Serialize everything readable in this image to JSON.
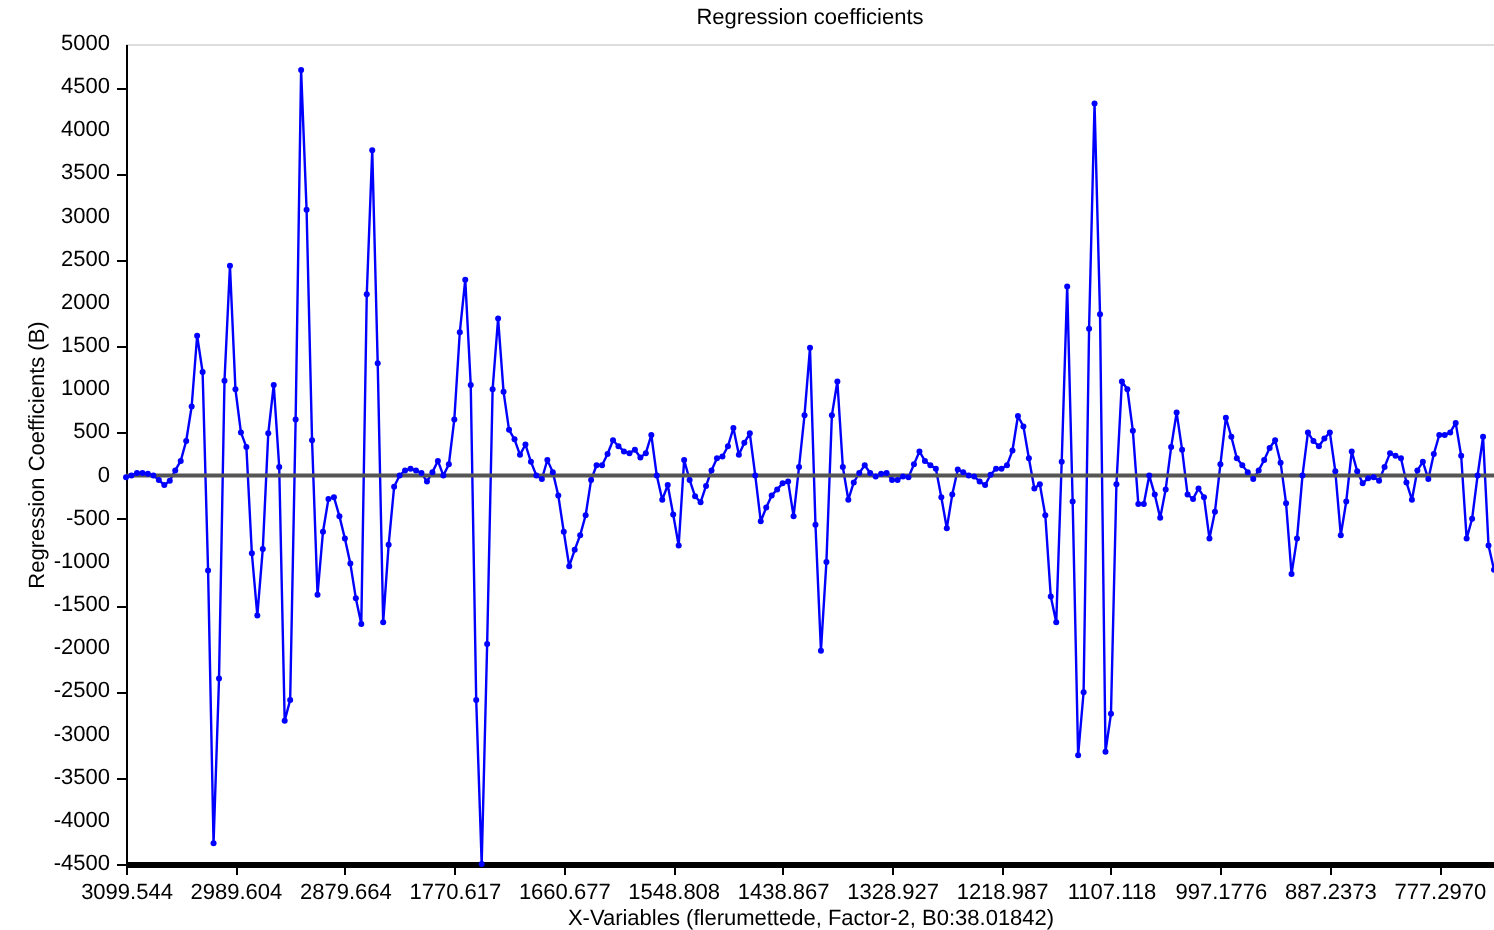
{
  "chart_data": {
    "type": "line",
    "title": "Regression coefficients",
    "xlabel": "X-Variables (flerumettede, Factor-2, B0:38.01842)",
    "ylabel": "Regression Coefficients (B)",
    "categories": [
      "3099.544",
      null,
      null,
      null,
      null,
      null,
      null,
      null,
      null,
      null,
      null,
      null,
      null,
      null,
      null,
      null,
      null,
      null,
      null,
      null,
      "2989.604",
      null,
      null,
      null,
      null,
      null,
      null,
      null,
      null,
      null,
      null,
      null,
      null,
      null,
      null,
      null,
      null,
      null,
      null,
      null,
      "2879.664",
      null,
      null,
      null,
      null,
      null,
      null,
      null,
      null,
      null,
      null,
      null,
      null,
      null,
      null,
      null,
      null,
      null,
      null,
      null,
      "1770.617",
      null,
      null,
      null,
      null,
      null,
      null,
      null,
      null,
      null,
      null,
      null,
      null,
      null,
      null,
      null,
      null,
      null,
      null,
      null,
      "1660.677",
      null,
      null,
      null,
      null,
      null,
      null,
      null,
      null,
      null,
      null,
      null,
      null,
      null,
      null,
      null,
      null,
      null,
      null,
      null,
      "1548.808",
      null,
      null,
      null,
      null,
      null,
      null,
      null,
      null,
      null,
      null,
      null,
      null,
      null,
      null,
      null,
      null,
      null,
      null,
      null,
      "1438.867",
      null,
      null,
      null,
      null,
      null,
      null,
      null,
      null,
      null,
      null,
      null,
      null,
      null,
      null,
      null,
      null,
      null,
      null,
      null,
      "1328.927",
      null,
      null,
      null,
      null,
      null,
      null,
      null,
      null,
      null,
      null,
      null,
      null,
      null,
      null,
      null,
      null,
      null,
      null,
      null,
      "1218.987",
      null,
      null,
      null,
      null,
      null,
      null,
      null,
      null,
      null,
      null,
      null,
      null,
      null,
      null,
      null,
      null,
      null,
      null,
      null,
      "1107.118",
      null,
      null,
      null,
      null,
      null,
      null,
      null,
      null,
      null,
      null,
      null,
      null,
      null,
      null,
      null,
      null,
      null,
      null,
      null,
      "997.1776",
      null,
      null,
      null,
      null,
      null,
      null,
      null,
      null,
      null,
      null,
      null,
      null,
      null,
      null,
      null,
      null,
      null,
      null,
      null,
      "887.2373",
      null,
      null,
      null,
      null,
      null,
      null,
      null,
      null,
      null,
      null,
      null,
      null,
      null,
      null,
      null,
      null,
      null,
      null,
      null,
      "777.2970",
      null,
      null,
      null,
      null,
      null,
      null,
      null,
      null,
      null,
      null
    ],
    "ylim": [
      -4500,
      5000
    ],
    "yticks": [
      -4500,
      -4000,
      -3500,
      -3000,
      -2500,
      -2000,
      -1500,
      -1000,
      -500,
      0,
      500,
      1000,
      1500,
      2000,
      2500,
      3000,
      3500,
      4000,
      4500,
      5000
    ],
    "grid": false,
    "marker": "circle",
    "line_style": "solid",
    "ref_lines": [
      {
        "axis": "y",
        "value": 0,
        "color": "#555555"
      }
    ],
    "series": [
      {
        "color": "#0000ff",
        "values": [
          -20,
          0,
          30,
          30,
          20,
          0,
          -50,
          -110,
          -60,
          60,
          170,
          400,
          800,
          1620,
          1200,
          -1100,
          -4260,
          -2350,
          1100,
          2430,
          1000,
          500,
          330,
          -900,
          -1620,
          -850,
          490,
          1050,
          100,
          -2840,
          -2600,
          650,
          4700,
          3080,
          410,
          -1380,
          -650,
          -270,
          -250,
          -470,
          -730,
          -1020,
          -1420,
          -1720,
          2100,
          3770,
          1300,
          -1700,
          -800,
          -130,
          0,
          60,
          80,
          60,
          30,
          -70,
          40,
          170,
          0,
          130,
          650,
          1660,
          2270,
          1050,
          -2600,
          -4500,
          -1950,
          1000,
          1820,
          970,
          530,
          420,
          240,
          360,
          160,
          0,
          -40,
          180,
          40,
          -230,
          -650,
          -1050,
          -860,
          -690,
          -460,
          -50,
          120,
          120,
          250,
          410,
          340,
          280,
          260,
          300,
          210,
          260,
          470,
          0,
          -280,
          -110,
          -450,
          -810,
          180,
          -50,
          -240,
          -310,
          -120,
          60,
          200,
          220,
          340,
          550,
          240,
          380,
          490,
          0,
          -530,
          -370,
          -230,
          -160,
          -90,
          -70,
          -470,
          100,
          700,
          1480,
          -570,
          -2030,
          -1000,
          700,
          1090,
          100,
          -280,
          -80,
          30,
          120,
          30,
          -10,
          20,
          30,
          -50,
          -50,
          -10,
          -20,
          130,
          280,
          170,
          120,
          80,
          -250,
          -610,
          -220,
          70,
          40,
          0,
          -10,
          -70,
          -110,
          10,
          80,
          80,
          120,
          290,
          690,
          570,
          200,
          -150,
          -100,
          -460,
          -1400,
          -1700,
          160,
          2190,
          -300,
          -3240,
          -2510,
          1700,
          4310,
          1870,
          -3200,
          -2760,
          -100,
          1090,
          1000,
          520,
          -330,
          -330,
          0,
          -220,
          -490,
          -160,
          330,
          730,
          300,
          -220,
          -270,
          -150,
          -250,
          -730,
          -420,
          130,
          670,
          450,
          200,
          120,
          40,
          -40,
          60,
          180,
          320,
          410,
          150,
          -320,
          -1140,
          -730,
          0,
          500,
          400,
          340,
          430,
          500,
          50,
          -690,
          -300,
          280,
          50,
          -90,
          -30,
          -20,
          -60,
          100,
          260,
          230,
          200,
          -80,
          -280,
          60,
          160,
          -40,
          250,
          470,
          470,
          500,
          610,
          230,
          -730,
          -500,
          0,
          450,
          -810,
          -1090
        ]
      }
    ]
  }
}
